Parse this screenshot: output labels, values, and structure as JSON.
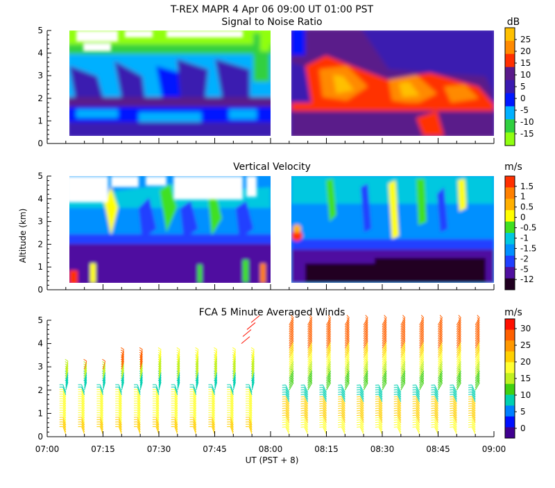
{
  "header": {
    "line1": "T-REX   MAPR   4 Apr 06   09:00 UT   01:00   PST"
  },
  "y_axis": {
    "label": "Altitude (km)",
    "ticks": [
      "0",
      "1",
      "2",
      "3",
      "4",
      "5"
    ]
  },
  "x_axis": {
    "label": "UT  (PST + 8)",
    "ticks": [
      "07:00",
      "07:15",
      "07:30",
      "07:45",
      "08:00",
      "08:15",
      "08:30",
      "08:45",
      "09:00"
    ]
  },
  "chart_data": [
    {
      "type": "heatmap",
      "title": "Signal to Noise Ratio",
      "xlabel": "UT  (PST + 8)",
      "ylabel": "Altitude (km)",
      "xlim": [
        "07:00",
        "09:00"
      ],
      "ylim": [
        0,
        5
      ],
      "colorbar": {
        "unit": "dB",
        "tick_labels": [
          "25",
          "20",
          "15",
          "10",
          "5",
          "0",
          "-5",
          "-10",
          "-15"
        ],
        "colors": [
          "#ffc000",
          "#ff8a00",
          "#ff3000",
          "#5a1a8a",
          "#3a1ab0",
          "#0018ff",
          "#00b0ff",
          "#30d040",
          "#90ff10"
        ]
      },
      "data_gap": [
        "07:58",
        "08:05"
      ]
    },
    {
      "type": "heatmap",
      "title": "Vertical Velocity",
      "xlabel": "UT  (PST + 8)",
      "ylabel": "Altitude (km)",
      "xlim": [
        "07:00",
        "09:00"
      ],
      "ylim": [
        0,
        5
      ],
      "colorbar": {
        "unit": "m/s",
        "tick_labels": [
          "1.5",
          "1",
          "0.5",
          "0",
          "-0.5",
          "-1",
          "-1.5",
          "-2",
          "-5",
          "-12"
        ],
        "colors": [
          "#ff3000",
          "#ff8000",
          "#ffb000",
          "#ffff00",
          "#40e020",
          "#00c8e0",
          "#0090ff",
          "#2040ff",
          "#5010a0",
          "#200020"
        ]
      },
      "data_gap": [
        "07:58",
        "08:05"
      ]
    },
    {
      "type": "scatter",
      "title": "FCA 5 Minute Averaged Winds",
      "xlabel": "UT  (PST + 8)",
      "ylabel": "Altitude (km)",
      "xlim": [
        "07:00",
        "09:00"
      ],
      "ylim": [
        0,
        5
      ],
      "colorbar": {
        "unit": "m/s",
        "tick_labels": [
          "30",
          "25",
          "20",
          "15",
          "10",
          "5",
          "0"
        ],
        "colors": [
          "#ff1000",
          "#ff6000",
          "#ff9800",
          "#ffd000",
          "#ffff30",
          "#c0f020",
          "#40d010",
          "#00d0b0",
          "#0080ff",
          "#0010ff",
          "#400090"
        ]
      },
      "barb_times": [
        "07:05",
        "07:10",
        "07:15",
        "07:20",
        "07:25",
        "07:30",
        "07:35",
        "07:40",
        "07:45",
        "07:50",
        "07:55",
        "08:05",
        "08:10",
        "08:15",
        "08:20",
        "08:25",
        "08:30",
        "08:35",
        "08:40",
        "08:45",
        "08:50",
        "08:55"
      ],
      "data_gap": [
        "07:58",
        "08:03"
      ]
    }
  ]
}
